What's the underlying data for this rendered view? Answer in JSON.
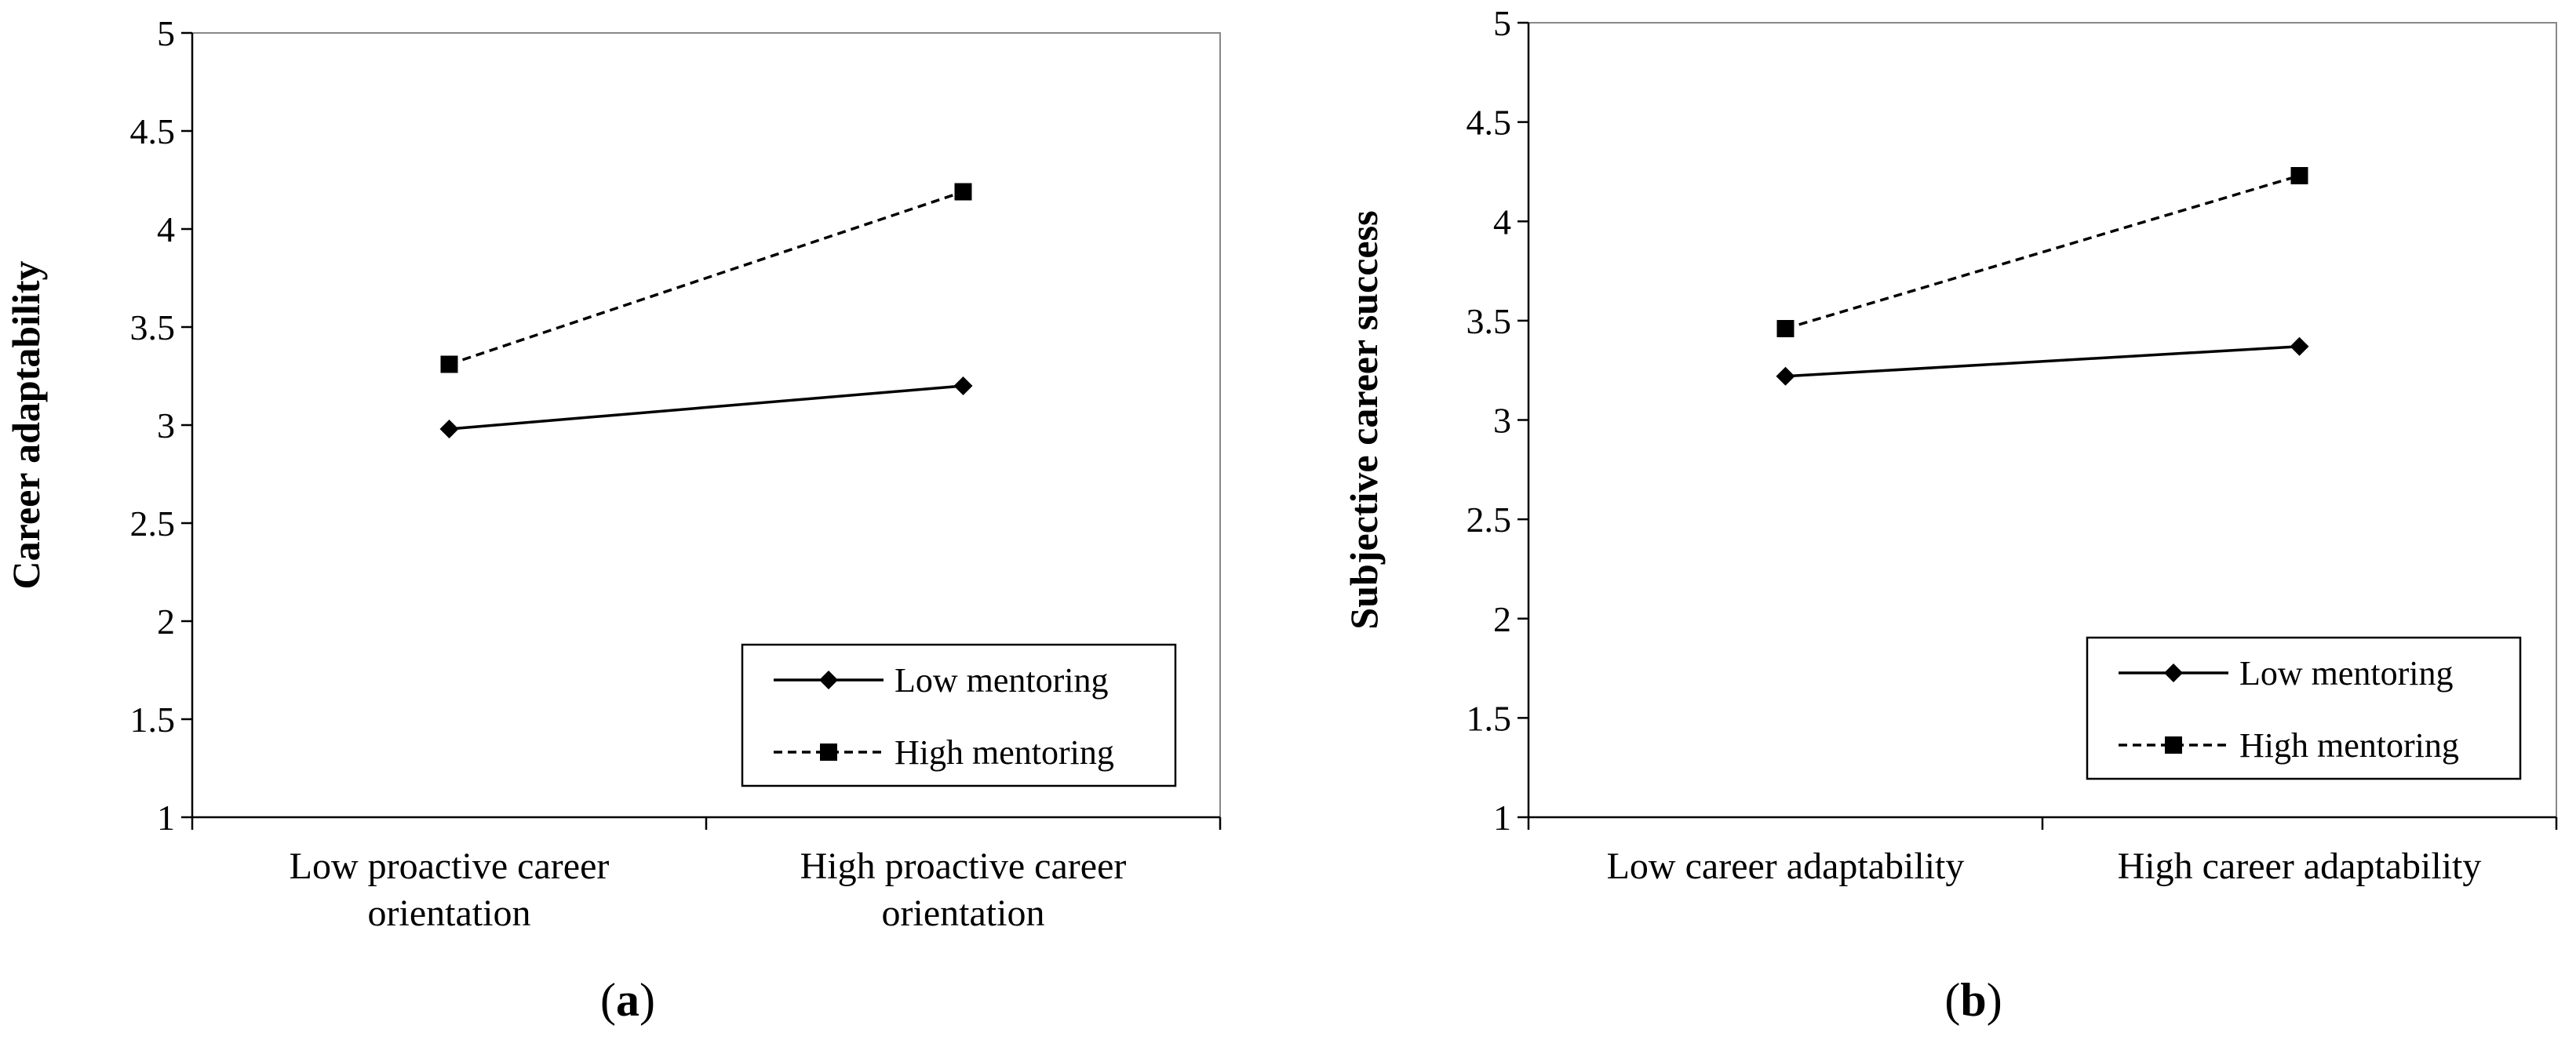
{
  "chart_data": [
    {
      "type": "line",
      "title": "",
      "xlabel": "",
      "ylabel": "Career adaptability",
      "ylim": [
        1,
        5
      ],
      "yticks": [
        "1",
        "1.5",
        "2",
        "2.5",
        "3",
        "3.5",
        "4",
        "4.5",
        "5"
      ],
      "categories": [
        [
          "Low proactive career",
          "orientation"
        ],
        [
          "High proactive career",
          "orientation"
        ]
      ],
      "series": [
        {
          "name": "Low mentoring",
          "values": [
            2.98,
            3.2
          ],
          "marker": "diamond",
          "line": "solid",
          "color": "#000000"
        },
        {
          "name": "High mentoring",
          "values": [
            3.31,
            4.19
          ],
          "marker": "square",
          "line": "dashed",
          "color": "#000000"
        }
      ],
      "legend_position": "bottom-right",
      "grid": false,
      "panel_label": {
        "open": "(",
        "letter": "a",
        "close": ")"
      }
    },
    {
      "type": "line",
      "title": "",
      "xlabel": "",
      "ylabel": "Subjective career success",
      "ylim": [
        1,
        5
      ],
      "yticks": [
        "1",
        "1.5",
        "2",
        "2.5",
        "3",
        "3.5",
        "4",
        "4.5",
        "5"
      ],
      "categories": [
        [
          "Low career adaptability"
        ],
        [
          "High career adaptability"
        ]
      ],
      "series": [
        {
          "name": "Low mentoring",
          "values": [
            3.22,
            3.37
          ],
          "marker": "diamond",
          "line": "solid",
          "color": "#000000"
        },
        {
          "name": "High mentoring",
          "values": [
            3.46,
            4.23
          ],
          "marker": "square",
          "line": "dashed",
          "color": "#000000"
        }
      ],
      "legend_position": "bottom-right",
      "grid": false,
      "panel_label": {
        "open": "(",
        "letter": "b",
        "close": ")"
      }
    }
  ]
}
